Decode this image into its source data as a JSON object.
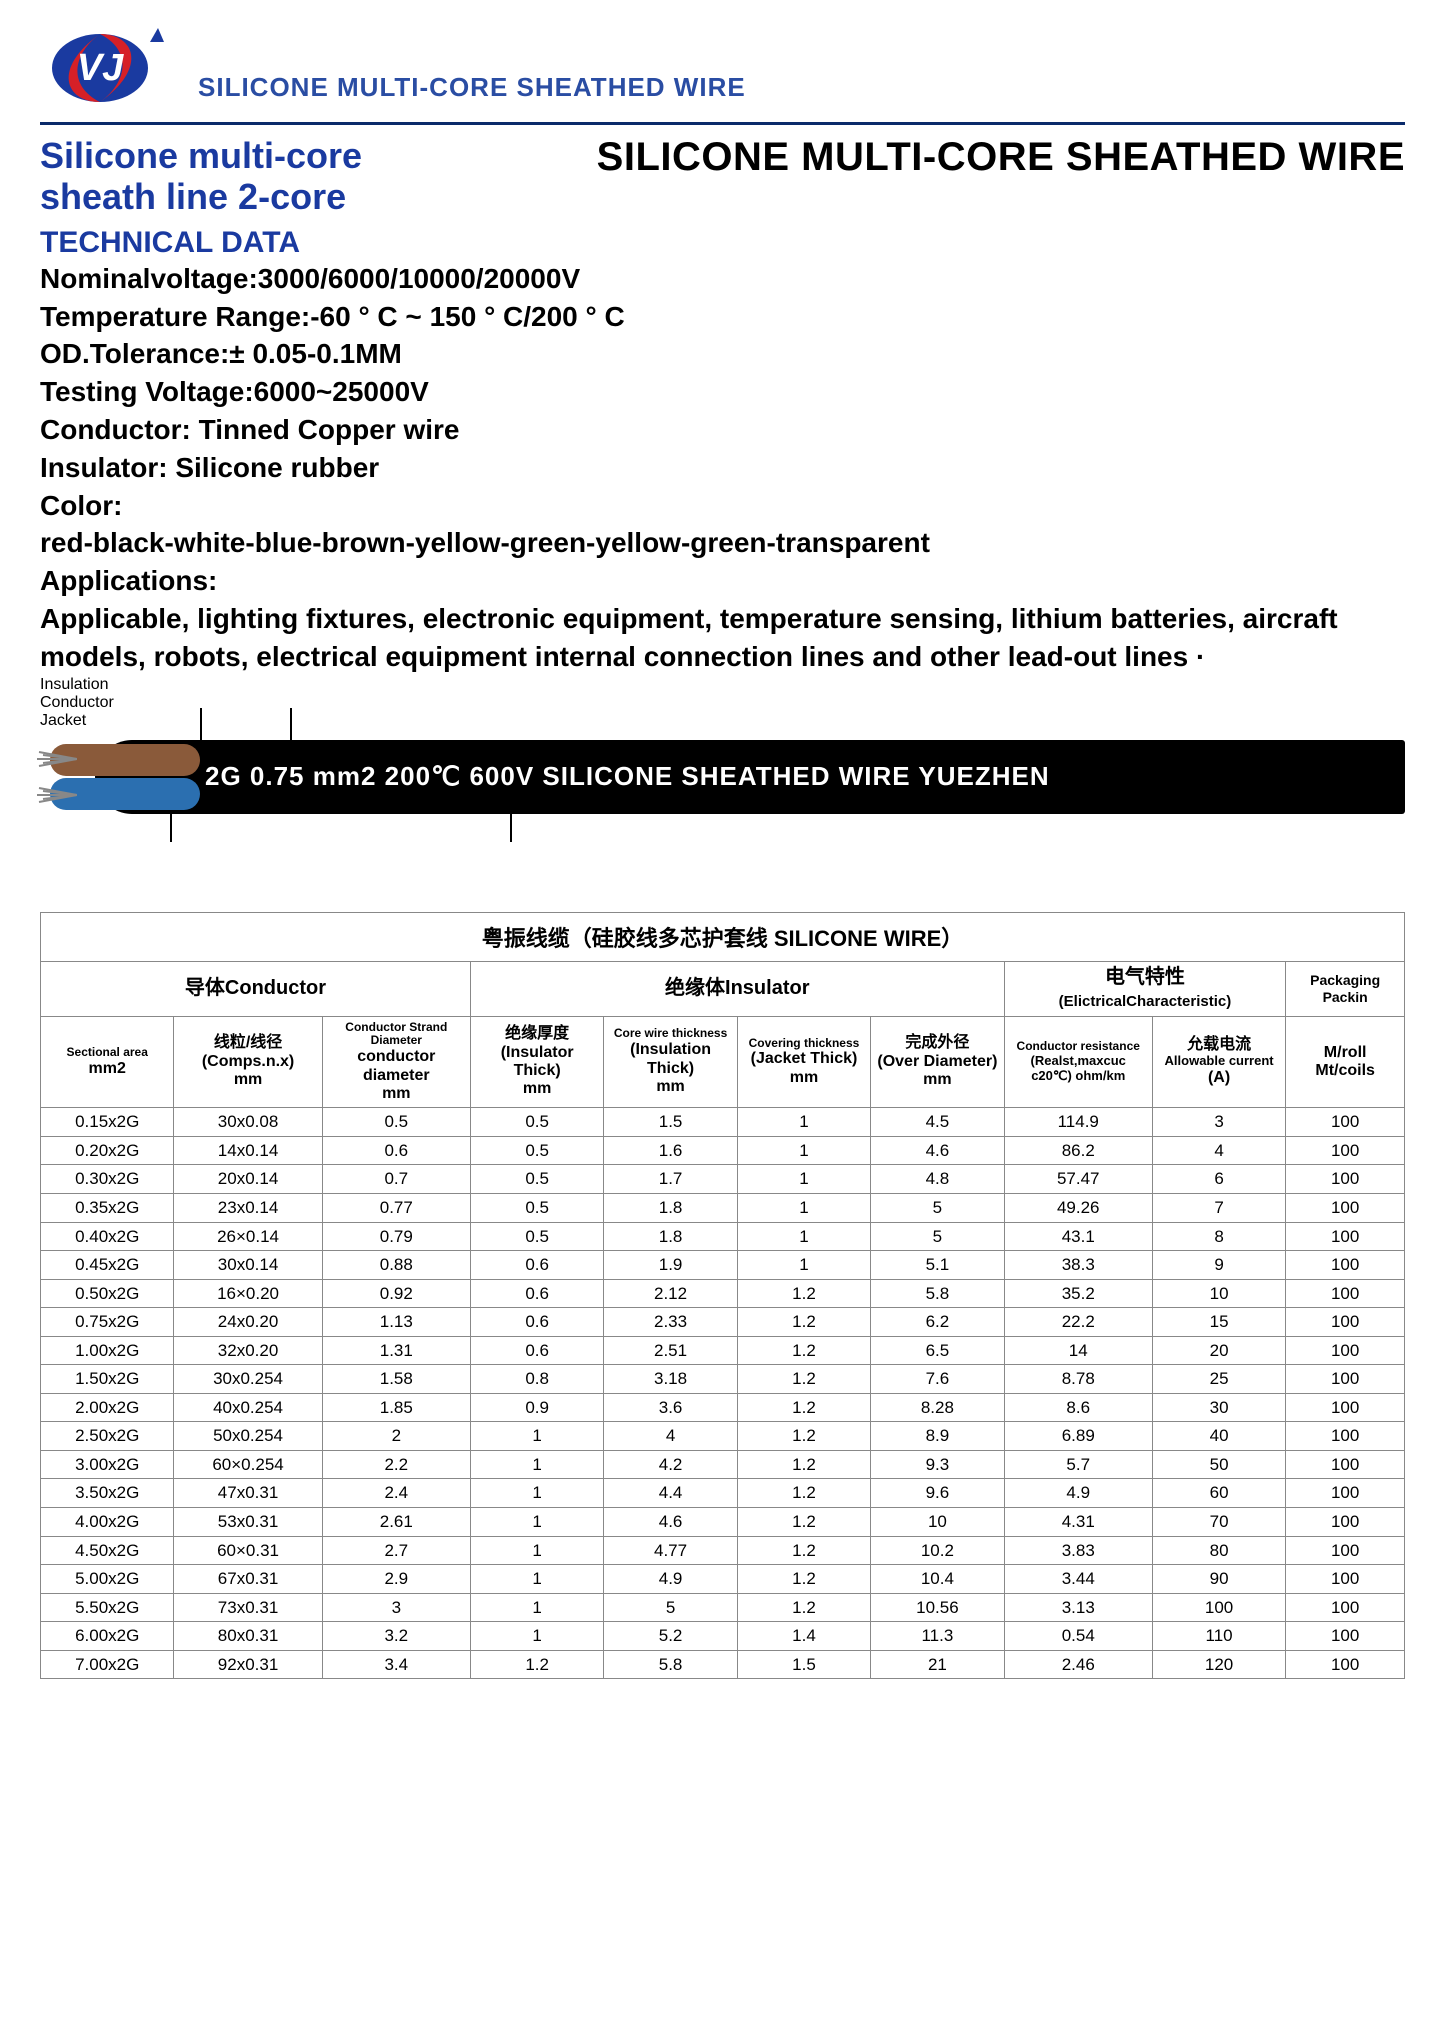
{
  "header": {
    "subtitle": "SILICONE MULTI-CORE SHEATHED WIRE"
  },
  "title": {
    "left_line1": "Silicone multi-core",
    "left_line2": "sheath line 2-core",
    "right": "SILICONE MULTI-CORE SHEATHED WIRE"
  },
  "tech": {
    "label": "TECHNICAL DATA",
    "items": [
      "Nominalvoltage:3000/6000/10000/20000V",
      "Temperature Range:-60 ° C ~ 150 ° C/200 ° C",
      "OD.Tolerance:± 0.05-0.1MM",
      "Testing Voltage:6000~25000V",
      "Conductor: Tinned Copper wire",
      "Insulator: Silicone rubber",
      "Color:",
      "red-black-white-blue-brown-yellow-green-yellow-green-transparent",
      "Applications:",
      "Applicable, lighting fixtures, electronic equipment, temperature sensing, lithium batteries, aircraft models, robots, electrical equipment internal connection lines and other lead-out lines ·"
    ]
  },
  "diagram": {
    "insulation_label": "Insulation",
    "conductor_label": "Conductor",
    "jacket_label": "Jacket",
    "cable_text": "2G 0.75 mm2   200℃ 600V  SILICONE SHEATHED WIRE  YUEZHEN",
    "core_top_color": "#8a5a3a",
    "core_bot_color": "#2b6fb0",
    "jacket_color": "#000000"
  },
  "table": {
    "caption": "粤振线缆（硅胶线多芯护套线 SILICONE WIRE）",
    "group_headers": {
      "conductor": "导体Conductor",
      "insulator": "绝缘体Insulator",
      "electrical_cn": "电气特性",
      "electrical_en": "(ElictricalCharacteristic)",
      "packaging": "Packaging Packin"
    },
    "col_headers": {
      "sectional_small": "Sectional area",
      "sectional_unit": "mm2",
      "comps_cn": "线粒/线径",
      "comps_en": "(Comps.n.x)",
      "comps_unit": "mm",
      "cond_dia_small": "Conductor Strand Diameter",
      "cond_dia_en": "conductor diameter",
      "cond_dia_unit": "mm",
      "ins_thick_cn": "绝缘厚度",
      "ins_thick_en": "(Insulator Thick)",
      "ins_thick_unit": "mm",
      "core_thick_small": "Core wire thickness",
      "core_thick_en": "(Insulation Thick)",
      "core_thick_unit": "mm",
      "cover_small": "Covering thickness",
      "cover_en": "(Jacket Thick)",
      "cover_unit": "mm",
      "over_cn": "完成外径",
      "over_en": "(Over Diameter)",
      "over_unit": "mm",
      "res_small": "Conductor resistance",
      "res_en": "(Realst,maxcuc c20℃) ohm/km",
      "cur_cn": "允载电流",
      "cur_en": "Allowable current",
      "cur_unit": "(A)",
      "roll_en": "M/roll",
      "roll_unit": "Mt/coils"
    },
    "rows": [
      [
        "0.15x2G",
        "30x0.08",
        "0.5",
        "0.5",
        "1.5",
        "1",
        "4.5",
        "114.9",
        "3",
        "100"
      ],
      [
        "0.20x2G",
        "14x0.14",
        "0.6",
        "0.5",
        "1.6",
        "1",
        "4.6",
        "86.2",
        "4",
        "100"
      ],
      [
        "0.30x2G",
        "20x0.14",
        "0.7",
        "0.5",
        "1.7",
        "1",
        "4.8",
        "57.47",
        "6",
        "100"
      ],
      [
        "0.35x2G",
        "23x0.14",
        "0.77",
        "0.5",
        "1.8",
        "1",
        "5",
        "49.26",
        "7",
        "100"
      ],
      [
        "0.40x2G",
        "26×0.14",
        "0.79",
        "0.5",
        "1.8",
        "1",
        "5",
        "43.1",
        "8",
        "100"
      ],
      [
        "0.45x2G",
        "30x0.14",
        "0.88",
        "0.6",
        "1.9",
        "1",
        "5.1",
        "38.3",
        "9",
        "100"
      ],
      [
        "0.50x2G",
        "16×0.20",
        "0.92",
        "0.6",
        "2.12",
        "1.2",
        "5.8",
        "35.2",
        "10",
        "100"
      ],
      [
        "0.75x2G",
        "24x0.20",
        "1.13",
        "0.6",
        "2.33",
        "1.2",
        "6.2",
        "22.2",
        "15",
        "100"
      ],
      [
        "1.00x2G",
        "32x0.20",
        "1.31",
        "0.6",
        "2.51",
        "1.2",
        "6.5",
        "14",
        "20",
        "100"
      ],
      [
        "1.50x2G",
        "30x0.254",
        "1.58",
        "0.8",
        "3.18",
        "1.2",
        "7.6",
        "8.78",
        "25",
        "100"
      ],
      [
        "2.00x2G",
        "40x0.254",
        "1.85",
        "0.9",
        "3.6",
        "1.2",
        "8.28",
        "8.6",
        "30",
        "100"
      ],
      [
        "2.50x2G",
        "50x0.254",
        "2",
        "1",
        "4",
        "1.2",
        "8.9",
        "6.89",
        "40",
        "100"
      ],
      [
        "3.00x2G",
        "60×0.254",
        "2.2",
        "1",
        "4.2",
        "1.2",
        "9.3",
        "5.7",
        "50",
        "100"
      ],
      [
        "3.50x2G",
        "47x0.31",
        "2.4",
        "1",
        "4.4",
        "1.2",
        "9.6",
        "4.9",
        "60",
        "100"
      ],
      [
        "4.00x2G",
        "53x0.31",
        "2.61",
        "1",
        "4.6",
        "1.2",
        "10",
        "4.31",
        "70",
        "100"
      ],
      [
        "4.50x2G",
        "60×0.31",
        "2.7",
        "1",
        "4.77",
        "1.2",
        "10.2",
        "3.83",
        "80",
        "100"
      ],
      [
        "5.00x2G",
        "67x0.31",
        "2.9",
        "1",
        "4.9",
        "1.2",
        "10.4",
        "3.44",
        "90",
        "100"
      ],
      [
        "5.50x2G",
        "73x0.31",
        "3",
        "1",
        "5",
        "1.2",
        "10.56",
        "3.13",
        "100",
        "100"
      ],
      [
        "6.00x2G",
        "80x0.31",
        "3.2",
        "1",
        "5.2",
        "1.4",
        "11.3",
        "0.54",
        "110",
        "100"
      ],
      [
        "7.00x2G",
        "92x0.31",
        "3.4",
        "1.2",
        "5.8",
        "1.5",
        "21",
        "2.46",
        "120",
        "100"
      ]
    ]
  },
  "colors": {
    "brand_blue": "#1a3aa0",
    "header_rule": "#0a2a6a",
    "logo_red": "#d62027",
    "logo_blue": "#1a3aa0"
  }
}
